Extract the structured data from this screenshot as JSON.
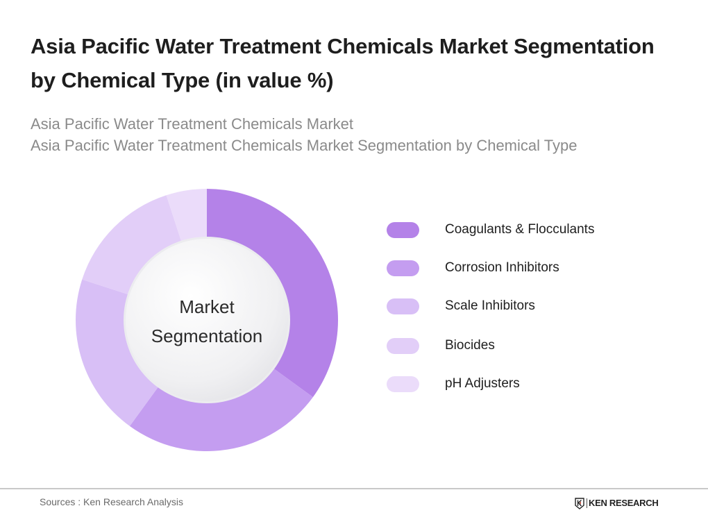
{
  "header": {
    "title": "Asia Pacific Water Treatment Chemicals Market Segmentation by Chemical Type (in value %)",
    "subtitle_line1": "Asia Pacific Water Treatment Chemicals Market",
    "subtitle_line2": "Asia Pacific Water Treatment Chemicals Market Segmentation by Chemical Type"
  },
  "chart": {
    "center_line1": "Market",
    "center_line2": "Segmentation"
  },
  "legend": [
    {
      "label": "Coagulants & Flocculants",
      "color": "#b482e8"
    },
    {
      "label": "Corrosion Inhibitors",
      "color": "#c49df0"
    },
    {
      "label": "Scale Inhibitors",
      "color": "#d8bff6"
    },
    {
      "label": "Biocides",
      "color": "#e2cef8"
    },
    {
      "label": "pH Adjusters",
      "color": "#ebdcfa"
    }
  ],
  "footer": {
    "source": "Sources : Ken Research Analysis",
    "logo_text": "KEN RESEARCH"
  },
  "chart_data": {
    "type": "pie",
    "variant": "donut",
    "title": "Asia Pacific Water Treatment Chemicals Market Segmentation by Chemical Type (in value %)",
    "center_text": "Market Segmentation",
    "categories": [
      "Coagulants & Flocculants",
      "Corrosion Inhibitors",
      "Scale Inhibitors",
      "Biocides",
      "pH Adjusters"
    ],
    "values": [
      35,
      25,
      20,
      15,
      5
    ],
    "colors": [
      "#b482e8",
      "#c49df0",
      "#d8bff6",
      "#e2cef8",
      "#ebdcfa"
    ],
    "start_angle": "12 o'clock, clockwise",
    "legend_position": "right",
    "data_labels": false
  }
}
